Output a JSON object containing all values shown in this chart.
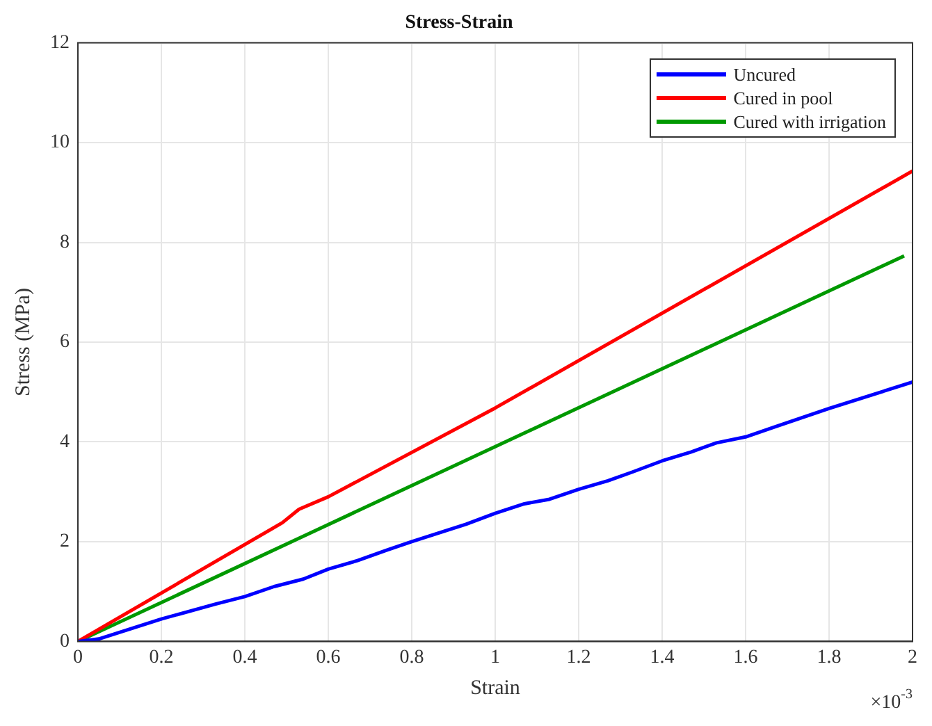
{
  "chart_data": {
    "type": "line",
    "title": "Stress-Strain",
    "xlabel": "Strain",
    "ylabel": "Stress (MPa)",
    "annotations": [
      "×10$^{-3}$"
    ],
    "xlim": [
      0,
      2
    ],
    "xticks": [
      0,
      0.2,
      0.4,
      0.6,
      0.8,
      1,
      1.2,
      1.4,
      1.6,
      1.8,
      2
    ],
    "ylim": [
      0,
      12
    ],
    "yticks": [
      0,
      2,
      4,
      6,
      8,
      10,
      12
    ],
    "grid": true,
    "legend": "top right",
    "marker": "none",
    "line_style": "solid",
    "series": [
      {
        "name": "Uncured",
        "color": "#0000ff",
        "x": [
          0,
          0.05,
          0.2,
          0.33,
          0.4,
          0.47,
          0.54,
          0.6,
          0.67,
          0.74,
          0.8,
          0.93,
          1.0,
          1.07,
          1.13,
          1.2,
          1.27,
          1.33,
          1.4,
          1.47,
          1.53,
          1.6,
          1.67,
          1.8,
          2.0
        ],
        "values": [
          0,
          0.05,
          0.45,
          0.75,
          0.9,
          1.1,
          1.25,
          1.45,
          1.62,
          1.83,
          2.0,
          2.35,
          2.57,
          2.76,
          2.85,
          3.05,
          3.22,
          3.4,
          3.62,
          3.8,
          3.98,
          4.1,
          4.3,
          4.67,
          5.2
        ]
      },
      {
        "name": "Cured in pool",
        "color": "#ff0000",
        "x": [
          0,
          0.49,
          0.53,
          0.6,
          1.0,
          2.0
        ],
        "values": [
          0,
          2.38,
          2.65,
          2.9,
          4.68,
          9.43
        ]
      },
      {
        "name": "Cured with irrigation",
        "color": "#009900",
        "x": [
          0,
          1.98
        ],
        "values": [
          0,
          7.73
        ]
      }
    ]
  }
}
